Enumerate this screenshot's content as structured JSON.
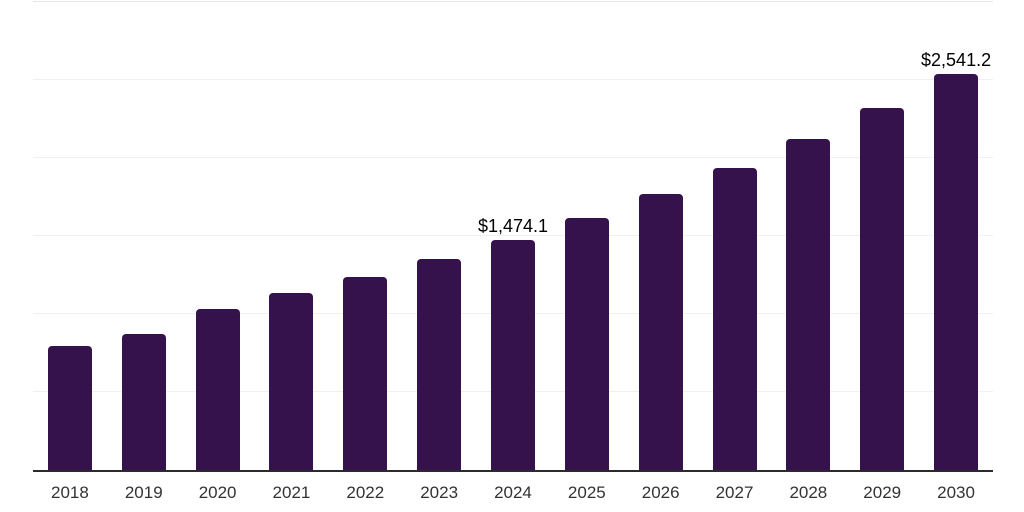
{
  "chart_data": {
    "type": "bar",
    "title": "",
    "xlabel": "",
    "ylabel": "",
    "categories": [
      "2018",
      "2019",
      "2020",
      "2021",
      "2022",
      "2023",
      "2024",
      "2025",
      "2026",
      "2027",
      "2028",
      "2029",
      "2030"
    ],
    "values": [
      795.0,
      870.0,
      1035.0,
      1133.0,
      1239.0,
      1351.0,
      1474.1,
      1614.3,
      1767.8,
      1935.9,
      2120.0,
      2321.6,
      2541.2
    ],
    "data_labels": [
      {
        "category": "2024",
        "text": "$1,474.1"
      },
      {
        "category": "2030",
        "text": "$2,541.2"
      }
    ],
    "ylim": [
      0,
      3000
    ],
    "gridline_step": 500,
    "grid": true,
    "legend": false,
    "colors": {
      "bar": "#36124d",
      "axis_line": "#2b2b2b",
      "gridline": "#f0f0f0",
      "top_border": "#e6e6e6",
      "data_label_text": "#000000",
      "tick_label_text": "#333333",
      "background": "#ffffff"
    }
  }
}
